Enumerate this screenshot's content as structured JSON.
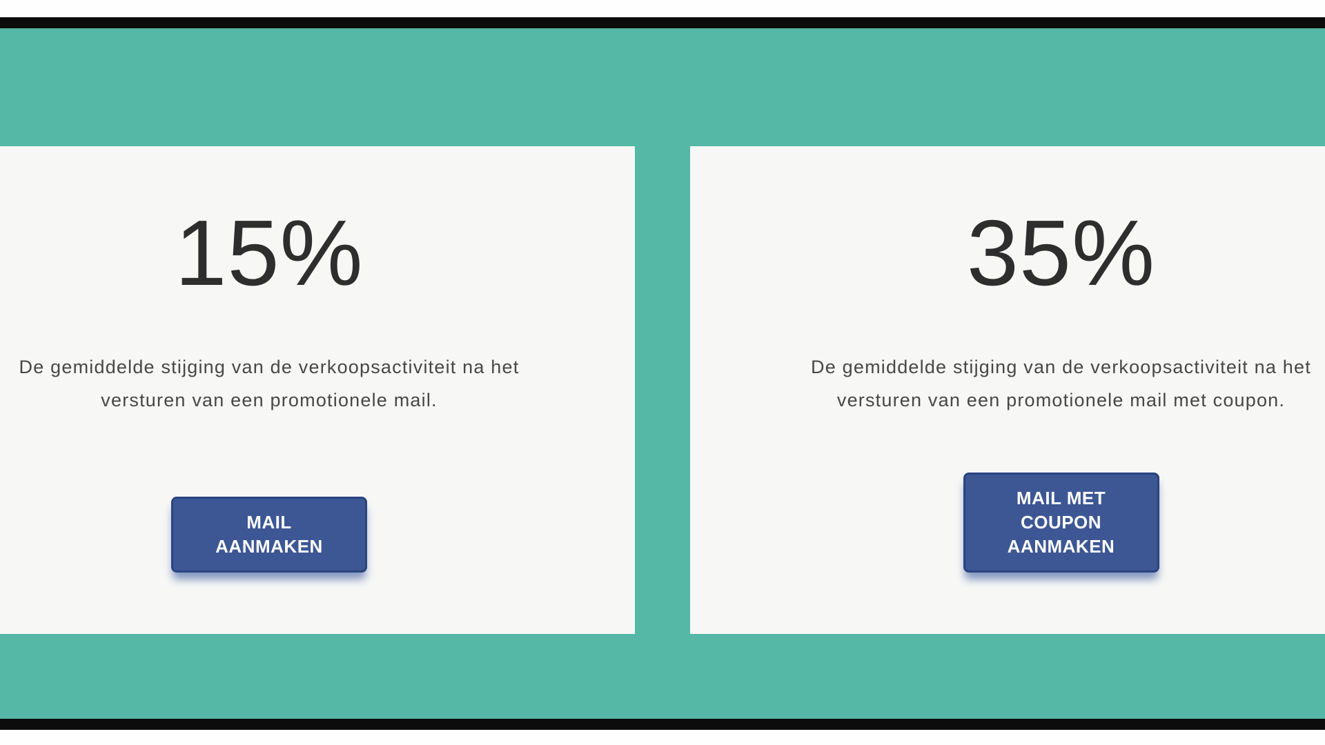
{
  "slide": {
    "background_color": "#55b7a5",
    "frame_color": "#0c0c0c",
    "card_background": "#f7f7f6",
    "button_color": "#3d5794",
    "button_text_color": "#ffffff"
  },
  "cards": [
    {
      "percentage": "15%",
      "description": "De gemiddelde stijging van de verkoopsactiviteit na het\nversturen van een promotionele mail.",
      "button_label": "MAIL\nAANMAKEN"
    },
    {
      "percentage": "35%",
      "description": "De gemiddelde stijging van de verkoopsactiviteit na het\nversturen van een promotionele mail met coupon.",
      "button_label": "MAIL MET\nCOUPON\nAANMAKEN"
    }
  ]
}
